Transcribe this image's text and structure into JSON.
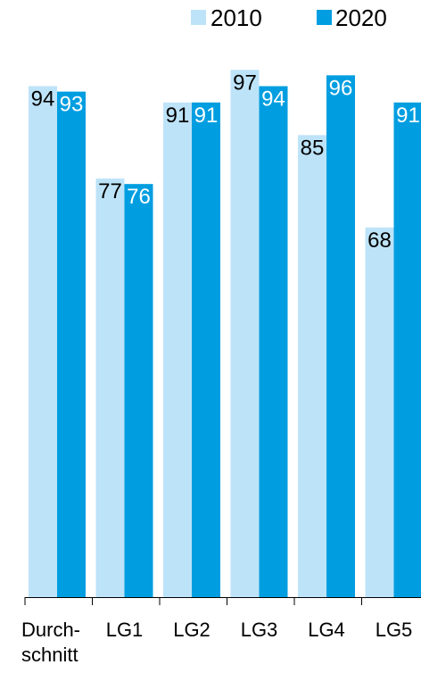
{
  "chart_data": {
    "type": "bar",
    "categories": [
      "Durch-\nschnitt",
      "LG1",
      "LG2",
      "LG3",
      "LG4",
      "LG5"
    ],
    "series": [
      {
        "name": "2010",
        "color": "#bde3f8",
        "label_color": "#000000",
        "values": [
          94,
          77,
          91,
          97,
          85,
          68
        ]
      },
      {
        "name": "2020",
        "color": "#009ee0",
        "label_color": "#ffffff",
        "values": [
          93,
          76,
          91,
          94,
          96,
          91
        ]
      }
    ],
    "ylim": [
      0,
      100
    ],
    "grid": false,
    "legend_position": "top-right"
  }
}
